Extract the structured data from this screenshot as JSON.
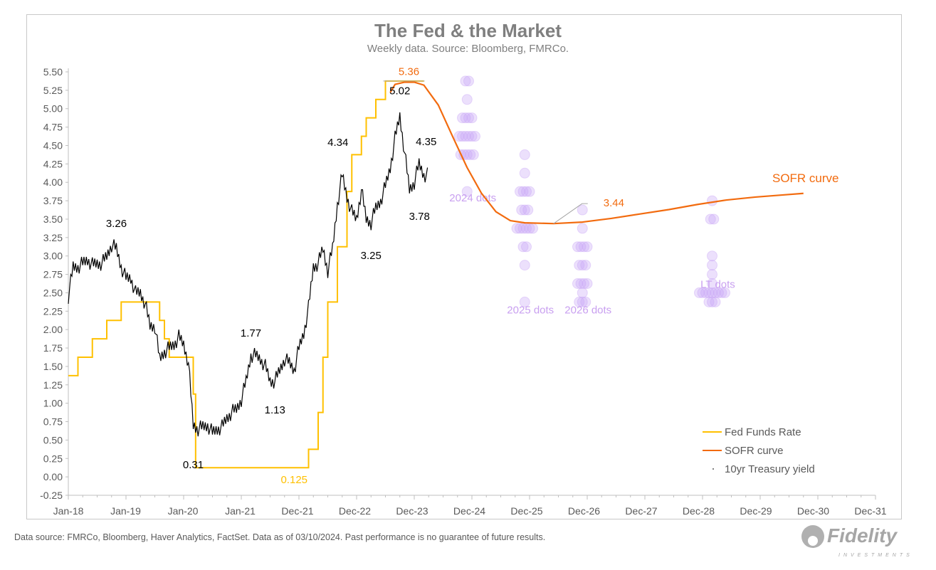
{
  "chart_data": {
    "type": "line",
    "title": "The Fed & the Market",
    "subtitle": "Weekly data.  Source: Bloomberg, FMRCo.",
    "ylim": [
      -0.25,
      5.5
    ],
    "yticks": [
      "5.50",
      "5.25",
      "5.00",
      "4.75",
      "4.50",
      "4.25",
      "4.00",
      "3.75",
      "3.50",
      "3.25",
      "3.00",
      "2.75",
      "2.50",
      "2.25",
      "2.00",
      "1.75",
      "1.50",
      "1.25",
      "1.00",
      "0.75",
      "0.50",
      "0.25",
      "0.00",
      "-0.25"
    ],
    "xticks": [
      "Jan-18",
      "Jan-19",
      "Jan-20",
      "Jan-21",
      "Dec-21",
      "Dec-22",
      "Dec-23",
      "Dec-24",
      "Dec-25",
      "Dec-26",
      "Dec-27",
      "Dec-28",
      "Dec-29",
      "Dec-30",
      "Dec-31"
    ],
    "grid": false,
    "legend_placement": "bottom-right",
    "colors": {
      "fed_funds": "#ffc000",
      "sofr": "#f26b0f",
      "treasury": "#000000",
      "dots": "#c9a6f5",
      "dots_label": "#c9a0f0"
    },
    "series": [
      {
        "name": "Fed Funds Rate",
        "style": "step",
        "points": [
          [
            "2018-01",
            1.375
          ],
          [
            "2018-03",
            1.625
          ],
          [
            "2018-06",
            1.875
          ],
          [
            "2018-09",
            2.125
          ],
          [
            "2018-12",
            2.375
          ],
          [
            "2019-08",
            2.125
          ],
          [
            "2019-09",
            1.875
          ],
          [
            "2019-10",
            1.625
          ],
          [
            "2020-03",
            1.125
          ],
          [
            "2020-03-16",
            0.125
          ],
          [
            "2022-03",
            0.375
          ],
          [
            "2022-05",
            0.875
          ],
          [
            "2022-06",
            1.625
          ],
          [
            "2022-07",
            2.375
          ],
          [
            "2022-09",
            3.125
          ],
          [
            "2022-11",
            3.875
          ],
          [
            "2022-12",
            4.375
          ],
          [
            "2023-02",
            4.625
          ],
          [
            "2023-03",
            4.875
          ],
          [
            "2023-05",
            5.125
          ],
          [
            "2023-07",
            5.375
          ],
          [
            "2024-03",
            5.375
          ]
        ]
      },
      {
        "name": "SOFR curve",
        "style": "line",
        "points": [
          [
            "2023-08",
            5.22
          ],
          [
            "2023-09",
            5.33
          ],
          [
            "2023-11",
            5.36
          ],
          [
            "2024-01",
            5.36
          ],
          [
            "2024-03",
            5.32
          ],
          [
            "2024-06",
            5.05
          ],
          [
            "2024-09",
            4.62
          ],
          [
            "2024-12",
            4.2
          ],
          [
            "2025-03",
            3.85
          ],
          [
            "2025-06",
            3.6
          ],
          [
            "2025-09",
            3.48
          ],
          [
            "2025-12",
            3.45
          ],
          [
            "2026-06",
            3.44
          ],
          [
            "2026-12",
            3.46
          ],
          [
            "2027-06",
            3.51
          ],
          [
            "2027-12",
            3.57
          ],
          [
            "2028-06",
            3.63
          ],
          [
            "2028-12",
            3.7
          ],
          [
            "2029-06",
            3.76
          ],
          [
            "2029-12",
            3.8
          ],
          [
            "2030-06",
            3.83
          ],
          [
            "2030-10",
            3.85
          ]
        ]
      },
      {
        "name": "10yr Treasury yield",
        "style": "line",
        "start": "2018-01",
        "monthly": [
          2.45,
          2.85,
          2.85,
          2.9,
          2.95,
          2.88,
          2.9,
          2.9,
          3.0,
          3.15,
          3.1,
          2.85,
          2.7,
          2.7,
          2.5,
          2.5,
          2.35,
          2.05,
          2.05,
          1.6,
          1.7,
          1.75,
          1.8,
          1.9,
          1.8,
          1.55,
          0.7,
          0.65,
          0.68,
          0.7,
          0.6,
          0.65,
          0.68,
          0.8,
          0.88,
          0.92,
          1.05,
          1.3,
          1.65,
          1.65,
          1.6,
          1.5,
          1.3,
          1.3,
          1.45,
          1.6,
          1.55,
          1.45,
          1.75,
          1.95,
          2.3,
          2.85,
          2.9,
          3.1,
          2.8,
          3.1,
          3.7,
          4.1,
          3.8,
          3.6,
          3.5,
          3.9,
          3.5,
          3.45,
          3.65,
          3.75,
          3.95,
          4.2,
          4.6,
          4.9,
          4.4,
          3.9,
          4.0,
          4.25,
          4.1
        ]
      }
    ],
    "dot_plots": [
      {
        "label": "2024 dots",
        "date": "2024-12",
        "dots": [
          [
            5.375,
            2
          ],
          [
            5.125,
            1
          ],
          [
            4.875,
            4
          ],
          [
            4.625,
            6
          ],
          [
            4.375,
            5
          ],
          [
            3.875,
            1
          ]
        ]
      },
      {
        "label": "2025 dots",
        "date": "2025-12",
        "dots": [
          [
            4.375,
            1
          ],
          [
            4.125,
            1
          ],
          [
            3.875,
            4
          ],
          [
            3.625,
            3
          ],
          [
            3.375,
            6
          ],
          [
            3.125,
            2
          ],
          [
            2.875,
            1
          ],
          [
            2.375,
            1
          ]
        ]
      },
      {
        "label": "2026 dots",
        "date": "2026-12",
        "dots": [
          [
            3.625,
            1
          ],
          [
            3.375,
            1
          ],
          [
            3.125,
            4
          ],
          [
            2.875,
            3
          ],
          [
            2.625,
            4
          ],
          [
            2.5,
            1
          ],
          [
            2.375,
            3
          ]
        ]
      },
      {
        "label": "LT dots",
        "date": "2029-03",
        "dots": [
          [
            3.75,
            1
          ],
          [
            3.5,
            2
          ],
          [
            3.0,
            1
          ],
          [
            2.875,
            1
          ],
          [
            2.75,
            1
          ],
          [
            2.625,
            1
          ],
          [
            2.5,
            9
          ],
          [
            2.375,
            3
          ]
        ]
      }
    ],
    "annotations": [
      {
        "text": "3.26",
        "date": "2018-11",
        "value": 3.26,
        "color": "#000000"
      },
      {
        "text": "0.31",
        "date": "2020-03",
        "value": 0.31,
        "color": "#000000"
      },
      {
        "text": "1.77",
        "date": "2021-03",
        "value": 1.77,
        "color": "#000000"
      },
      {
        "text": "1.13",
        "date": "2021-08",
        "value": 1.13,
        "color": "#000000"
      },
      {
        "text": "4.34",
        "date": "2022-10",
        "value": 4.34,
        "color": "#000000"
      },
      {
        "text": "3.25",
        "date": "2023-04",
        "value": 3.25,
        "color": "#000000"
      },
      {
        "text": "5.02",
        "date": "2023-10",
        "value": 5.02,
        "color": "#000000"
      },
      {
        "text": "3.78",
        "date": "2023-12",
        "value": 3.78,
        "color": "#000000"
      },
      {
        "text": "4.35",
        "date": "2024-02",
        "value": 4.35,
        "color": "#000000"
      },
      {
        "text": "5.36",
        "date": "2023-11",
        "value": 5.36,
        "color": "#f26b0f"
      },
      {
        "text": "3.44",
        "date": "2026-06",
        "value": 3.44,
        "color": "#f26b0f"
      },
      {
        "text": "0.125",
        "date": "2021-12",
        "value": 0.125,
        "color": "#ffc000"
      },
      {
        "text": "SOFR curve",
        "date": "2030-06",
        "value": 4.0,
        "color": "#f26b0f"
      }
    ],
    "legend": [
      "Fed Funds Rate",
      "SOFR curve",
      "10yr Treasury yield"
    ]
  },
  "footer": "Data source: FMRCo, Bloomberg, Haver Analytics, FactSet. Data as of 03/10/2024. Past performance is no guarantee of future results.",
  "logo": {
    "name": "Fidelity",
    "tagline": "INVESTMENTS"
  }
}
